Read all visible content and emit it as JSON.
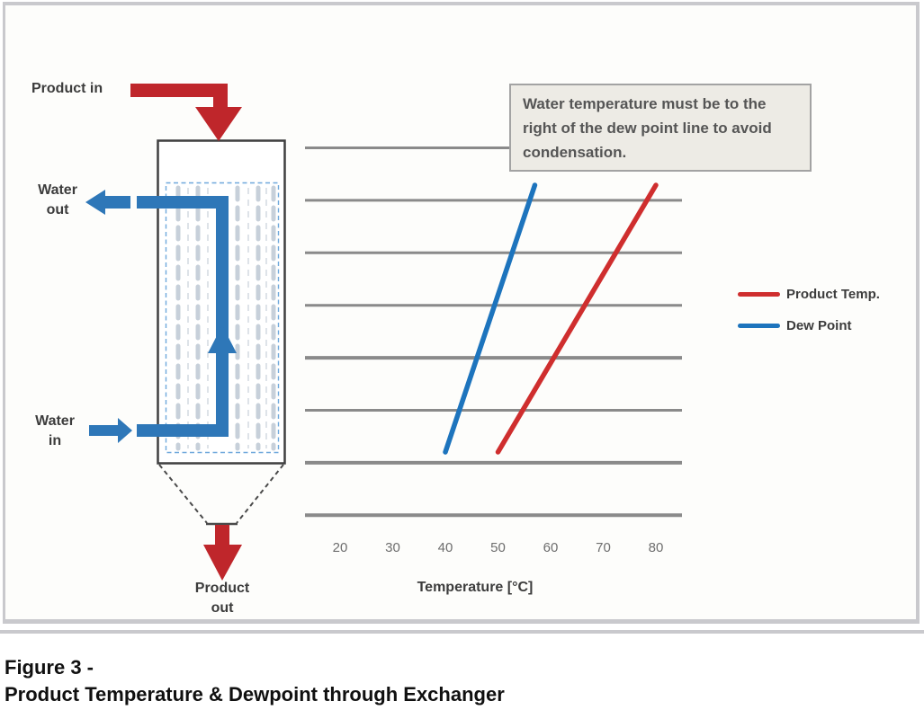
{
  "caption": {
    "line1": "Figure 3 -",
    "line2": "Product Temperature & Dewpoint through Exchanger"
  },
  "diagram": {
    "product_in": "Product in",
    "water_out": "Water\nout",
    "water_in": "Water\nin",
    "product_out": "Product\nout"
  },
  "chart_data": {
    "type": "line",
    "title": "",
    "xlabel": "Temperature [°C]",
    "ylabel": "",
    "x_ticks": [
      20,
      30,
      40,
      50,
      60,
      70,
      80
    ],
    "x_range_approx": [
      13,
      85
    ],
    "gridlines": {
      "horizontal_count": 8,
      "vertical": false,
      "y_axis_labels": false
    },
    "legend_position": "right-outside",
    "annotation": "Water temperature must be to the right of the dew point line to avoid condensation.",
    "series": [
      {
        "name": "Product Temp.",
        "color": "#cf2e2e",
        "points": [
          {
            "temp_c": 50,
            "height_frac": 0.0
          },
          {
            "temp_c": 80,
            "height_frac": 1.0
          }
        ]
      },
      {
        "name": "Dew Point",
        "color": "#1d74bd",
        "points": [
          {
            "temp_c": 40,
            "height_frac": 0.0
          },
          {
            "temp_c": 57,
            "height_frac": 1.0
          }
        ]
      }
    ]
  },
  "colors": {
    "pipe_red": "#bf262b",
    "pipe_blue": "#2e77b8",
    "gridline": "#8a8a8a",
    "vessel_border": "#3f3f3f",
    "tube_dash": "#c7d0da",
    "inner_dash": "#6fa8dc",
    "funnel": "#4a4a4a",
    "callout_bg": "#edebe5",
    "callout_border": "#a3a3a3",
    "callout_text": "#555555",
    "label_text": "#3c3c3c",
    "tick_text": "#6e6e6e",
    "panel_border": "#c9c9cd",
    "caption_text": "#101010"
  }
}
